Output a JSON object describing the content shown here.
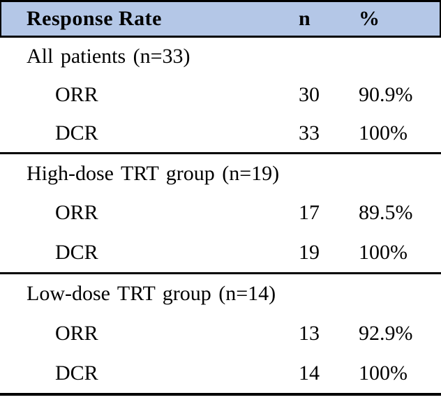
{
  "colors": {
    "header_bg": "#b4c7e7",
    "border": "#000000",
    "text": "#000000",
    "page_bg": "#ffffff"
  },
  "table": {
    "header": {
      "col1": "Response Rate",
      "col2": "n",
      "col3": "%"
    },
    "sections": [
      {
        "title": "All patients (n=33)",
        "rows": [
          {
            "label": "ORR",
            "n": "30",
            "pct": "90.9%"
          },
          {
            "label": "DCR",
            "n": "33",
            "pct": "100%"
          }
        ]
      },
      {
        "title": "High-dose TRT group (n=19)",
        "rows": [
          {
            "label": "ORR",
            "n": "17",
            "pct": "89.5%"
          },
          {
            "label": "DCR",
            "n": "19",
            "pct": "100%"
          }
        ]
      },
      {
        "title": "Low-dose TRT group (n=14)",
        "rows": [
          {
            "label": "ORR",
            "n": "13",
            "pct": "92.9%"
          },
          {
            "label": "DCR",
            "n": "14",
            "pct": "100%"
          }
        ]
      }
    ]
  }
}
